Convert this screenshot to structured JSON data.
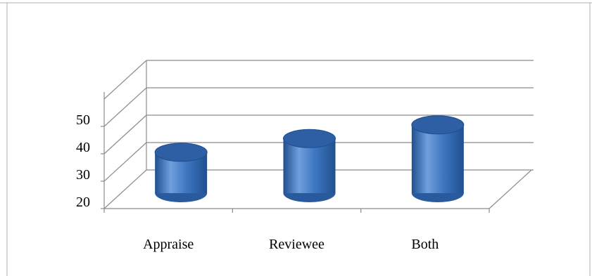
{
  "chart_data": {
    "type": "bar",
    "style": "3d-cylinder",
    "categories": [
      "Appraise",
      "Reviewee",
      "Both"
    ],
    "values": [
      38,
      43,
      48
    ],
    "ylim": [
      20,
      60
    ],
    "yticks": [
      20,
      30,
      40,
      50
    ],
    "grid": true,
    "legend": "none",
    "title": "",
    "xlabel": "",
    "ylabel": "",
    "colors": {
      "bar_light": "#6f9fdc",
      "bar_mid": "#3f77c2",
      "bar_dark": "#1f4f8f",
      "bar_top": "#2e5fa4",
      "grid": "#8c8c8c",
      "frame": "#9a9a9a"
    }
  }
}
